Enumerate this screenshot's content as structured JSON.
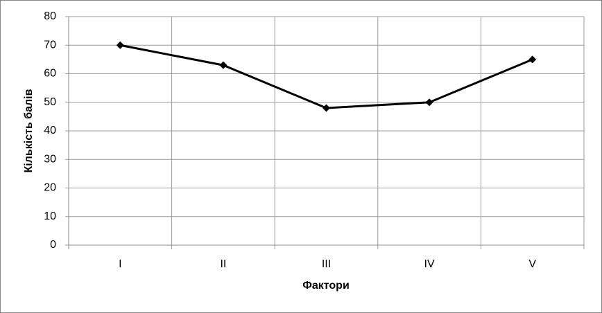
{
  "chart_data": {
    "type": "line",
    "x_label": "Фактори",
    "y_label": "Кількість балів",
    "categories": [
      "I",
      "II",
      "III",
      "IV",
      "V"
    ],
    "values": [
      70,
      63,
      48,
      50,
      65
    ],
    "color": "#000000",
    "marker": "diamond",
    "ylim": [
      0,
      80
    ],
    "yticks": [
      0,
      10,
      20,
      30,
      40,
      50,
      60,
      70,
      80
    ],
    "grid": true
  }
}
